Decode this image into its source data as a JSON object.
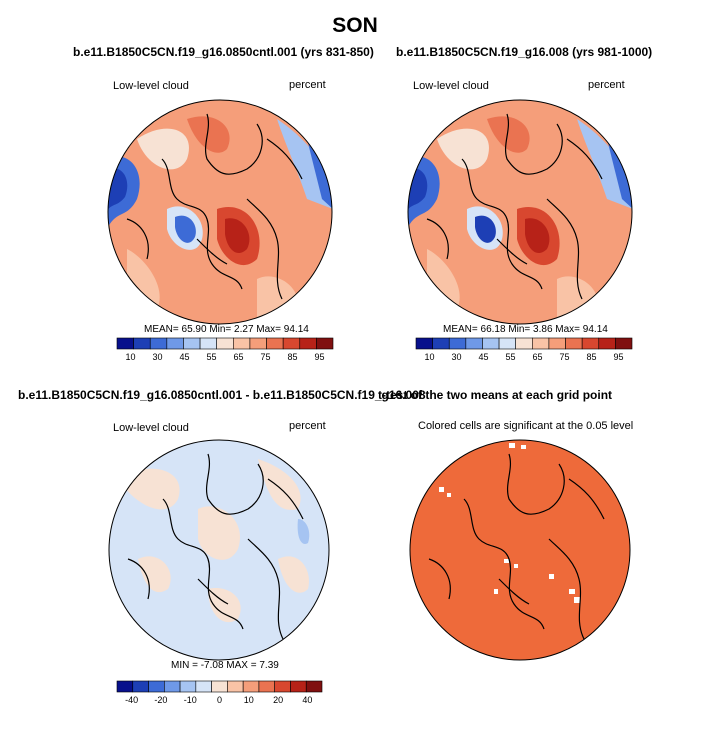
{
  "figure": {
    "title": "SON"
  },
  "panels": [
    {
      "title": "b.e11.B1850C5CN.f19_g16.0850cntl.001 (yrs 831-850)",
      "left_label": "Low-level cloud",
      "right_label": "percent",
      "stats": "MEAN=  65.90  Min=   2.27  Max=  94.14",
      "colorbar_ticks": [
        "10",
        "30",
        "45",
        "55",
        "65",
        "75",
        "85",
        "95"
      ]
    },
    {
      "title": "b.e11.B1850C5CN.f19_g16.008 (yrs 981-1000)",
      "left_label": "Low-level cloud",
      "right_label": "percent",
      "stats": "MEAN=  66.18  Min=   3.86  Max=  94.14",
      "colorbar_ticks": [
        "10",
        "30",
        "45",
        "55",
        "65",
        "75",
        "85",
        "95"
      ]
    },
    {
      "title": "b.e11.B1850C5CN.f19_g16.0850cntl.001 - b.e11.B1850C5CN.f19_g16.008",
      "left_label": "Low-level cloud",
      "right_label": "percent",
      "stats": "MIN =  -7.08  MAX =   7.39",
      "colorbar_ticks": [
        "-40",
        "-20",
        "-10",
        "0",
        "10",
        "20",
        "40"
      ]
    },
    {
      "title": "t-test of the two means at each grid point",
      "subtitle": "Colored cells are significant at the 0.05 level"
    }
  ],
  "colors": {
    "abs_scale": [
      "#08108c",
      "#1d3fb5",
      "#3d6bd6",
      "#6f99e8",
      "#a6c4f2",
      "#d6e4f7",
      "#f7e2d4",
      "#f9c3a6",
      "#f59e7a",
      "#ea7351",
      "#d8472f",
      "#b72218",
      "#801010"
    ],
    "diff_scale": [
      "#08108c",
      "#1d3fb5",
      "#3d6bd6",
      "#6f99e8",
      "#a6c4f2",
      "#d6e4f7",
      "#f7e2d4",
      "#f9c3a6",
      "#f59e7a",
      "#ea7351",
      "#d8472f",
      "#b72218",
      "#801010"
    ],
    "significance": "#ee6a3a"
  }
}
